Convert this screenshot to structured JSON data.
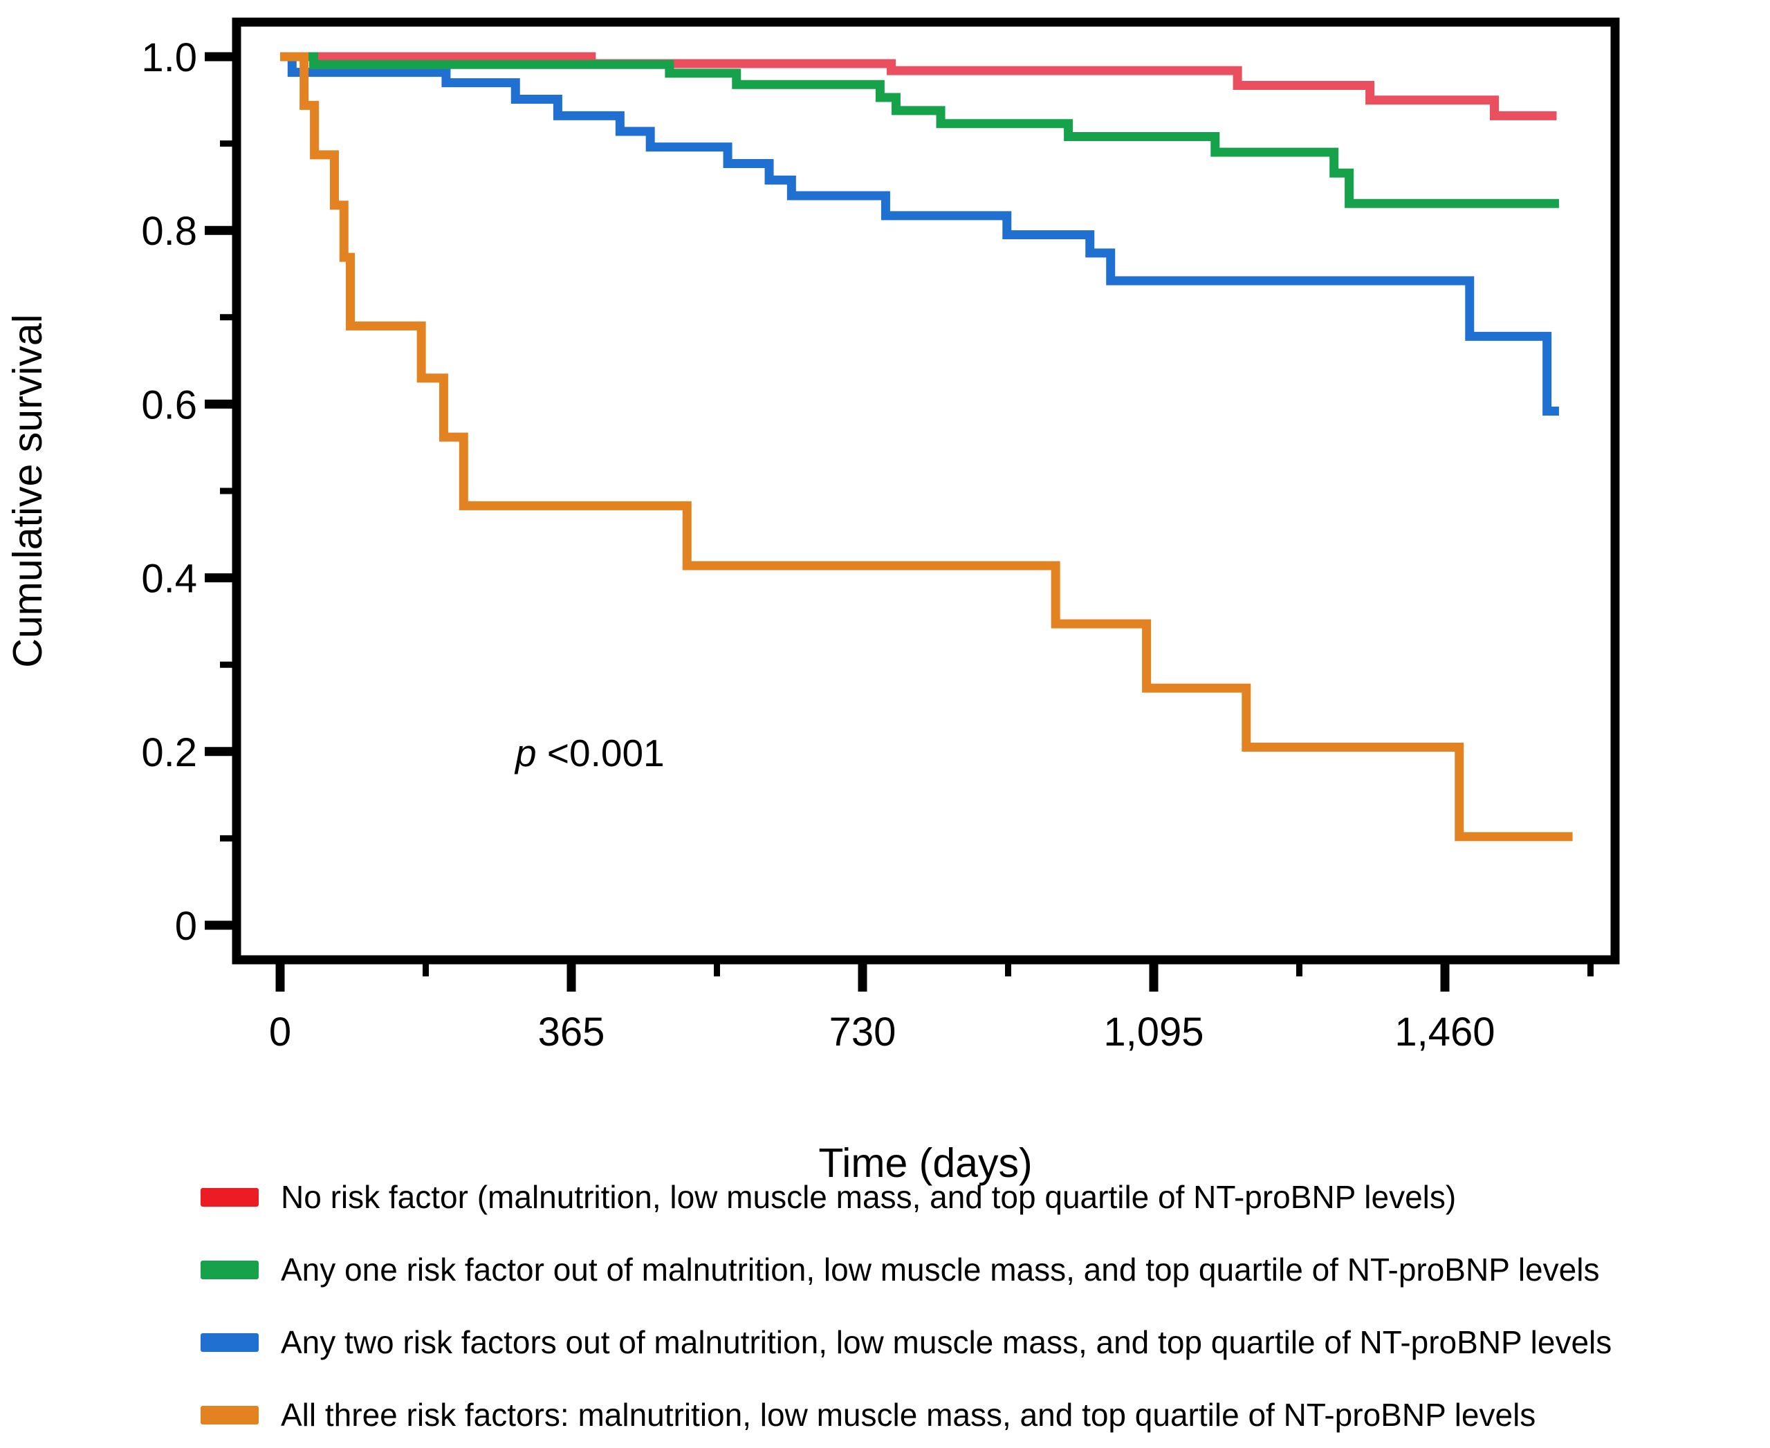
{
  "chart_data": {
    "type": "line",
    "subtype": "kaplan-meier-step",
    "title": "",
    "xlabel": "Time (days)",
    "ylabel": "Cumulative survival",
    "p_label": {
      "symbol": "p",
      "value": " <0.001"
    },
    "xlim": [
      0,
      1670
    ],
    "ylim": [
      0,
      1
    ],
    "grid": false,
    "legend_position": "bottom",
    "x_ticks": {
      "values": [
        0,
        365,
        730,
        1095,
        1460
      ],
      "labels": [
        "0",
        "365",
        "730",
        "1,095",
        "1,460"
      ],
      "minor_values": [
        182.5,
        547.5,
        912.5,
        1277.5,
        1642.5
      ]
    },
    "y_ticks": {
      "values": [
        1.0,
        0.8,
        0.6,
        0.4,
        0.2,
        0
      ],
      "labels": [
        "1.0",
        "0.8",
        "0.6",
        "0.4",
        "0.2",
        "0"
      ],
      "minor_values": [
        0.9,
        0.7,
        0.5,
        0.3,
        0.1
      ]
    },
    "series": [
      {
        "name": "No risk factor (malnutrition, low muscle mass, and top quartile of NT-proBNP levels)",
        "color": "#E94F5F",
        "legend_color": "#EC1C24",
        "points": [
          [
            0,
            1.0
          ],
          [
            390,
            0.992
          ],
          [
            766,
            0.984
          ],
          [
            1200,
            0.967
          ],
          [
            1366,
            0.95
          ],
          [
            1522,
            0.932
          ],
          [
            1600,
            0.932
          ]
        ]
      },
      {
        "name": "Any one risk factor out of malnutrition, low muscle mass, and top quartile of NT-proBNP levels",
        "color": "#15A24A",
        "legend_color": "#15A24A",
        "points": [
          [
            0,
            1.0
          ],
          [
            42,
            0.991
          ],
          [
            488,
            0.981
          ],
          [
            572,
            0.968
          ],
          [
            752,
            0.953
          ],
          [
            772,
            0.938
          ],
          [
            828,
            0.923
          ],
          [
            988,
            0.908
          ],
          [
            1172,
            0.89
          ],
          [
            1321,
            0.866
          ],
          [
            1340,
            0.831
          ],
          [
            1603,
            0.831
          ]
        ]
      },
      {
        "name": "Any two risk factors out of malnutrition, low muscle mass, and top quartile of NT-proBNP levels",
        "color": "#2070D2",
        "legend_color": "#2070D2",
        "points": [
          [
            0,
            1.0
          ],
          [
            15,
            0.982
          ],
          [
            208,
            0.97
          ],
          [
            295,
            0.951
          ],
          [
            348,
            0.932
          ],
          [
            426,
            0.914
          ],
          [
            464,
            0.896
          ],
          [
            561,
            0.877
          ],
          [
            613,
            0.858
          ],
          [
            641,
            0.84
          ],
          [
            759,
            0.817
          ],
          [
            911,
            0.795
          ],
          [
            1015,
            0.774
          ],
          [
            1041,
            0.742
          ],
          [
            1491,
            0.678
          ],
          [
            1588,
            0.592
          ],
          [
            1603,
            0.592
          ]
        ]
      },
      {
        "name": "All three risk factors: malnutrition, low muscle mass, and top quartile of NT-proBNP levels",
        "color": "#E38220",
        "legend_color": "#E38220",
        "points": [
          [
            0,
            1.0
          ],
          [
            30,
            0.944
          ],
          [
            43,
            0.887
          ],
          [
            68,
            0.829
          ],
          [
            80,
            0.769
          ],
          [
            88,
            0.69
          ],
          [
            177,
            0.63
          ],
          [
            205,
            0.562
          ],
          [
            230,
            0.483
          ],
          [
            510,
            0.414
          ],
          [
            972,
            0.347
          ],
          [
            1086,
            0.273
          ],
          [
            1211,
            0.205
          ],
          [
            1478,
            0.102
          ],
          [
            1620,
            0.102
          ]
        ]
      }
    ]
  }
}
